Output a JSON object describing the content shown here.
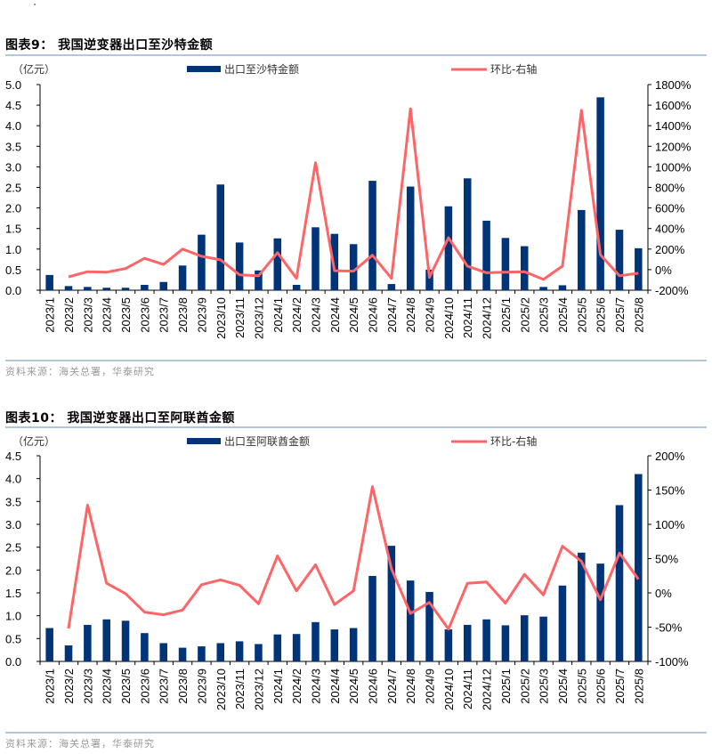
{
  "figures": [
    {
      "title": "图表9： 我国逆变器出口至沙特金额",
      "source": "资料来源：海关总署，华泰研究"
    },
    {
      "title": "图表10： 我国逆变器出口至阿联酋金额",
      "source": "资料来源：海关总署，华泰研究"
    }
  ],
  "colors": {
    "bar": "#003478",
    "line": "#ff6466",
    "rule": "#b4c6dc",
    "source": "#9a9a9a"
  },
  "chart_data": [
    {
      "type": "bar",
      "title": "我国逆变器出口至沙特金额",
      "ylabel": "（亿元）",
      "categories": [
        "2023/1",
        "2023/2",
        "2023/3",
        "2023/4",
        "2023/5",
        "2023/6",
        "2023/7",
        "2023/8",
        "2023/9",
        "2023/10",
        "2023/11",
        "2023/12",
        "2024/1",
        "2024/2",
        "2024/3",
        "2024/4",
        "2024/5",
        "2024/6",
        "2024/7",
        "2024/8",
        "2024/9",
        "2024/10",
        "2024/11",
        "2024/12",
        "2025/1",
        "2025/2",
        "2025/3",
        "2025/4",
        "2025/5",
        "2025/6",
        "2025/7",
        "2025/8"
      ],
      "series": [
        {
          "name": "出口至沙特金额",
          "type": "bar",
          "axis": "left",
          "values": [
            0.37,
            0.1,
            0.08,
            0.06,
            0.06,
            0.13,
            0.2,
            0.6,
            1.35,
            2.57,
            1.16,
            0.48,
            1.26,
            0.13,
            1.53,
            1.37,
            1.12,
            2.66,
            0.15,
            2.52,
            0.5,
            2.04,
            2.72,
            1.69,
            1.27,
            1.07,
            0.08,
            0.12,
            1.95,
            4.69,
            1.47,
            1.02
          ]
        },
        {
          "name": "环比-右轴",
          "type": "line",
          "axis": "right",
          "unit": "%",
          "values": [
            null,
            -70,
            -20,
            -25,
            10,
            110,
            50,
            200,
            130,
            95,
            -50,
            -60,
            165,
            -85,
            1040,
            -10,
            -15,
            140,
            -85,
            1565,
            -75,
            310,
            35,
            -30,
            -25,
            -20,
            -95,
            35,
            1550,
            145,
            -60,
            -35
          ]
        }
      ],
      "ylim": [
        0,
        5.0
      ],
      "yticks": [
        "0.0",
        "0.5",
        "1.0",
        "1.5",
        "2.0",
        "2.5",
        "3.0",
        "3.5",
        "4.0",
        "4.5",
        "5.0"
      ],
      "y2lim": [
        -200,
        1800
      ],
      "y2ticks": [
        "-200%",
        "0%",
        "200%",
        "400%",
        "600%",
        "800%",
        "1000%",
        "1200%",
        "1400%",
        "1600%",
        "1800%"
      ],
      "legend": "top",
      "grid": false
    },
    {
      "type": "bar",
      "title": "我国逆变器出口至阿联酋金额",
      "ylabel": "（亿元）",
      "categories": [
        "2023/1",
        "2023/2",
        "2023/3",
        "2023/4",
        "2023/5",
        "2023/6",
        "2023/7",
        "2023/8",
        "2023/9",
        "2023/10",
        "2023/11",
        "2023/12",
        "2024/1",
        "2024/2",
        "2024/3",
        "2024/4",
        "2024/5",
        "2024/6",
        "2024/7",
        "2024/8",
        "2024/9",
        "2024/10",
        "2024/11",
        "2024/12",
        "2025/1",
        "2025/2",
        "2025/3",
        "2025/4",
        "2025/5",
        "2025/6",
        "2025/7",
        "2025/8"
      ],
      "series": [
        {
          "name": "出口至阿联酋金额",
          "type": "bar",
          "axis": "left",
          "values": [
            0.73,
            0.35,
            0.8,
            0.92,
            0.89,
            0.62,
            0.4,
            0.3,
            0.33,
            0.4,
            0.44,
            0.38,
            0.59,
            0.6,
            0.86,
            0.7,
            0.73,
            1.87,
            2.53,
            1.77,
            1.52,
            0.7,
            0.8,
            0.92,
            0.79,
            1.01,
            0.98,
            1.66,
            2.38,
            2.14,
            3.42,
            4.1
          ]
        },
        {
          "name": "环比-右轴",
          "type": "line",
          "axis": "right",
          "unit": "%",
          "values": [
            null,
            -52,
            128,
            14,
            -1,
            -28,
            -32,
            -25,
            12,
            19,
            11,
            -16,
            54,
            3,
            41,
            -17,
            3,
            155,
            35,
            -30,
            -14,
            -53,
            14,
            16,
            -15,
            27,
            -3,
            68,
            46,
            -10,
            58,
            20
          ]
        }
      ],
      "ylim": [
        0,
        4.5
      ],
      "yticks": [
        "0.0",
        "0.5",
        "1.0",
        "1.5",
        "2.0",
        "2.5",
        "3.0",
        "3.5",
        "4.0",
        "4.5"
      ],
      "y2lim": [
        -100,
        200
      ],
      "y2ticks": [
        "-100%",
        "-50%",
        "0%",
        "50%",
        "100%",
        "150%",
        "200%"
      ],
      "legend": "top",
      "grid": false
    }
  ]
}
